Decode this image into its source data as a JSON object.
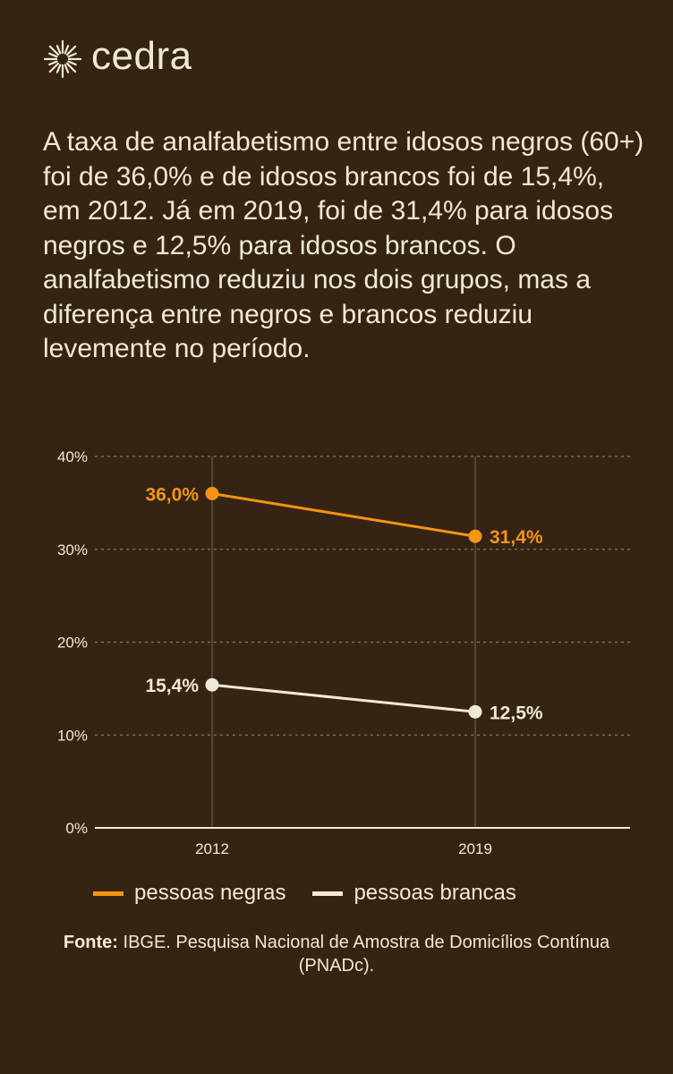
{
  "brand": {
    "name": "cedra",
    "icon": "sun-icon"
  },
  "intro": "A taxa de analfabetismo entre idosos negros (60+) foi de 36,0% e de idosos brancos foi de 15,4%, em 2012. Já em 2019, foi de 31,4% para idosos negros e 12,5% para idosos brancos. O analfabetismo reduziu nos dois grupos, mas a diferença entre negros e brancos reduziu levemente no período.",
  "chart_data": {
    "type": "line",
    "x": [
      "2012",
      "2019"
    ],
    "ylim": [
      0,
      40
    ],
    "yticks": [
      "0%",
      "10%",
      "20%",
      "30%",
      "40%"
    ],
    "ytick_values": [
      0,
      10,
      20,
      30,
      40
    ],
    "grid": true,
    "legend_position": "bottom",
    "series": [
      {
        "name": "pessoas negras",
        "values": [
          36.0,
          31.4
        ],
        "labels": [
          "36,0%",
          "31,4%"
        ],
        "color": "#f29512"
      },
      {
        "name": "pessoas brancas",
        "values": [
          15.4,
          12.5
        ],
        "labels": [
          "15,4%",
          "12,5%"
        ],
        "color": "#f2e8d8"
      }
    ]
  },
  "source": {
    "label": "Fonte:",
    "text": "IBGE. Pesquisa Nacional de Amostra de Domicílios Contínua (PNADc)."
  }
}
